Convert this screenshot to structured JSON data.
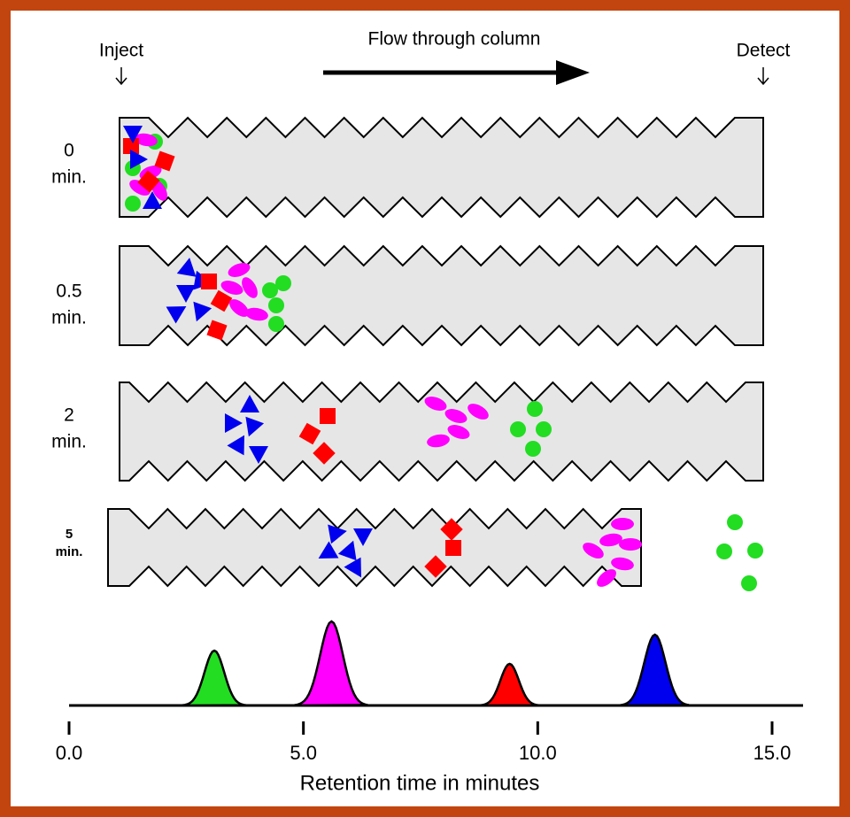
{
  "header": {
    "inject": "Inject",
    "flow": "Flow through column",
    "detect": "Detect"
  },
  "rows": [
    {
      "time": "0",
      "unit": "min."
    },
    {
      "time": "0.5",
      "unit": "min."
    },
    {
      "time": "2",
      "unit": "min."
    },
    {
      "time": "5",
      "unit": "min."
    }
  ],
  "chromatogram": {
    "xlim": [
      0,
      15
    ],
    "xticks": [
      {
        "value": 0,
        "label": "0.0"
      },
      {
        "value": 5,
        "label": "5.0"
      },
      {
        "value": 10,
        "label": "10.0"
      },
      {
        "value": 15,
        "label": "15.0"
      }
    ],
    "axis_title": "Retention time in minutes",
    "peaks": [
      {
        "retention": 3.1,
        "height": 62,
        "color": "#22dd22"
      },
      {
        "retention": 5.6,
        "height": 95,
        "color": "#ff00ff"
      },
      {
        "retention": 9.4,
        "height": 47,
        "color": "#ff0000"
      },
      {
        "retention": 12.5,
        "height": 80,
        "color": "#0000ee"
      }
    ]
  }
}
